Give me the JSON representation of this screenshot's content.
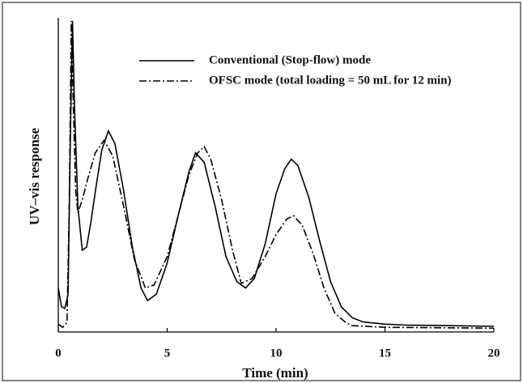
{
  "chart_data": {
    "type": "line",
    "xlabel": "Time (min)",
    "ylabel": "UV–vis response",
    "xlim": [
      0,
      20
    ],
    "xticks": [
      0,
      5,
      10,
      15,
      20
    ],
    "ylim": [
      0,
      100
    ],
    "legend": "top-right",
    "series": [
      {
        "name": "Conventional (Stop-flow) mode",
        "color": "#000000",
        "dash": "solid",
        "x": [
          0,
          0.15,
          0.3,
          0.45,
          0.55,
          0.65,
          0.75,
          0.9,
          1.1,
          1.3,
          1.5,
          1.75,
          2.0,
          2.3,
          2.6,
          3.0,
          3.4,
          3.8,
          4.1,
          4.5,
          5.0,
          5.5,
          6.0,
          6.3,
          6.7,
          7.2,
          7.7,
          8.2,
          8.6,
          9.0,
          9.5,
          10.0,
          10.4,
          10.7,
          11.0,
          11.5,
          12.0,
          12.5,
          13.0,
          13.5,
          14.0,
          15,
          16,
          18,
          20
        ],
        "values": [
          14,
          8,
          7.5,
          12,
          60,
          99,
          70,
          40,
          26,
          27,
          35,
          47,
          58,
          64,
          60,
          45,
          27,
          14,
          10,
          12,
          22,
          37,
          51,
          57,
          54,
          40,
          24,
          16,
          14,
          17,
          28,
          44,
          52,
          55,
          53,
          43,
          29,
          16,
          8,
          4.5,
          3.2,
          2.5,
          2.2,
          2,
          1.8
        ]
      },
      {
        "name": "OFSC mode (total loading = 50 mL for 12 min)",
        "color": "#000000",
        "dash": "dashdot",
        "x": [
          0,
          0.2,
          0.4,
          0.5,
          0.6,
          0.7,
          0.8,
          0.9,
          1.1,
          1.4,
          1.7,
          2.1,
          2.5,
          3.0,
          3.5,
          4.0,
          4.4,
          5.0,
          5.5,
          6.0,
          6.4,
          6.7,
          7.0,
          7.5,
          8.0,
          8.4,
          8.9,
          9.5,
          10.0,
          10.5,
          10.8,
          11.2,
          11.7,
          12.2,
          12.7,
          13.2,
          13.5,
          15,
          20
        ],
        "values": [
          2.5,
          1.5,
          3,
          40,
          99,
          70,
          45,
          38,
          42,
          50,
          57,
          61,
          56,
          40,
          23,
          14,
          15,
          24,
          37,
          50,
          57,
          59,
          55,
          42,
          26,
          15.5,
          17,
          24,
          31,
          36,
          37,
          34,
          25,
          14,
          6,
          3,
          2,
          1.5,
          1.2
        ]
      }
    ]
  }
}
